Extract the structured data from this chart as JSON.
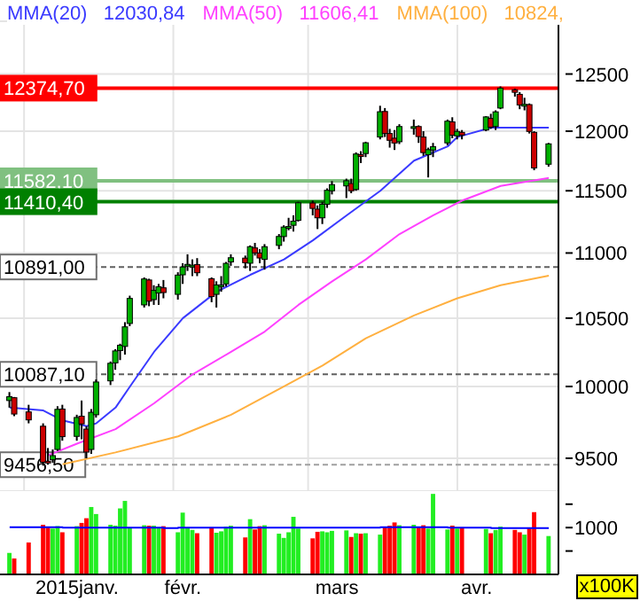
{
  "chart_data": [
    {
      "type": "candlestick",
      "legend": "top left",
      "grid": true,
      "tick_labels": "y",
      "x": [
        "2014-12-29",
        "2014-12-30",
        "2015-01-02",
        "2015-01-05",
        "2015-01-06",
        "2015-01-07",
        "2015-01-08",
        "2015-01-09",
        "2015-01-12",
        "2015-01-13",
        "2015-01-14",
        "2015-01-15",
        "2015-01-16",
        "2015-01-19",
        "2015-01-20",
        "2015-01-21",
        "2015-01-22",
        "2015-01-23",
        "2015-01-26",
        "2015-01-27",
        "2015-01-28",
        "2015-01-29",
        "2015-01-30",
        "2015-02-02",
        "2015-02-03",
        "2015-02-04",
        "2015-02-05",
        "2015-02-06",
        "2015-02-09",
        "2015-02-10",
        "2015-02-11",
        "2015-02-12",
        "2015-02-13",
        "2015-02-16",
        "2015-02-17",
        "2015-02-18",
        "2015-02-19",
        "2015-02-20",
        "2015-02-23",
        "2015-02-24",
        "2015-02-25",
        "2015-02-26",
        "2015-02-27",
        "2015-03-02",
        "2015-03-03",
        "2015-03-04",
        "2015-03-05",
        "2015-03-06",
        "2015-03-09",
        "2015-03-10",
        "2015-03-11",
        "2015-03-12",
        "2015-03-13",
        "2015-03-16",
        "2015-03-17",
        "2015-03-18",
        "2015-03-19",
        "2015-03-20",
        "2015-03-23",
        "2015-03-24",
        "2015-03-25",
        "2015-03-26",
        "2015-03-27",
        "2015-03-30",
        "2015-03-31",
        "2015-04-01",
        "2015-04-02",
        "2015-04-07",
        "2015-04-08",
        "2015-04-09",
        "2015-04-10",
        "2015-04-13",
        "2015-04-14",
        "2015-04-15",
        "2015-04-16",
        "2015-04-17",
        "2015-04-20"
      ],
      "ohlc": [
        [
          9900,
          9960,
          9850,
          9927
        ],
        [
          9920,
          9925,
          9790,
          9805
        ],
        [
          9820,
          9870,
          9740,
          9764
        ],
        [
          9720,
          9740,
          9450,
          9473
        ],
        [
          9480,
          9570,
          9456.5,
          9469
        ],
        [
          9490,
          9560,
          9470,
          9518
        ],
        [
          9560,
          9860,
          9550,
          9838
        ],
        [
          9840,
          9870,
          9620,
          9648
        ],
        [
          9650,
          9800,
          9620,
          9781
        ],
        [
          9790,
          9900,
          9630,
          9736
        ],
        [
          9700,
          9720,
          9500,
          9542
        ],
        [
          9560,
          9840,
          9530,
          9817
        ],
        [
          9800,
          10050,
          9780,
          10032
        ],
        [
          10040,
          10180,
          10010,
          10167
        ],
        [
          10170,
          10270,
          10120,
          10257
        ],
        [
          10260,
          10310,
          10190,
          10299
        ],
        [
          10290,
          10470,
          10230,
          10435
        ],
        [
          10460,
          10670,
          10440,
          10649
        ],
        [
          10600,
          10810,
          10580,
          10798
        ],
        [
          10790,
          10800,
          10590,
          10628
        ],
        [
          10640,
          10750,
          10600,
          10710
        ],
        [
          10690,
          10760,
          10600,
          10738
        ],
        [
          10730,
          10790,
          10650,
          10694
        ],
        [
          10680,
          10850,
          10640,
          10828
        ],
        [
          10830,
          10920,
          10760,
          10891
        ],
        [
          10900,
          10990,
          10860,
          10911
        ],
        [
          10900,
          10950,
          10820,
          10905
        ],
        [
          10910,
          10960,
          10820,
          10846
        ],
        [
          10800,
          10810,
          10620,
          10663
        ],
        [
          10680,
          10780,
          10580,
          10752
        ],
        [
          10750,
          10820,
          10700,
          10752
        ],
        [
          10760,
          10930,
          10740,
          10919
        ],
        [
          10930,
          10990,
          10900,
          10963
        ],
        [
          10960,
          10980,
          10880,
          10924
        ],
        [
          10920,
          11060,
          10860,
          11050
        ],
        [
          11040,
          11080,
          10980,
          11001
        ],
        [
          11000,
          11030,
          10920,
          10961
        ],
        [
          10950,
          11070,
          10870,
          11050
        ],
        [
          11060,
          11150,
          11030,
          11131
        ],
        [
          11130,
          11220,
          11090,
          11206
        ],
        [
          11200,
          11280,
          11180,
          11210
        ],
        [
          11220,
          11300,
          11170,
          11253
        ],
        [
          11260,
          11410,
          11250,
          11402
        ],
        [
          11400,
          11420,
          11300,
          11356
        ],
        [
          11350,
          11380,
          11190,
          11280
        ],
        [
          11280,
          11410,
          11230,
          11390
        ],
        [
          11390,
          11520,
          11360,
          11504
        ],
        [
          11500,
          11580,
          11470,
          11551
        ],
        [
          11540,
          11600,
          11440,
          11583
        ],
        [
          11560,
          11600,
          11480,
          11500
        ],
        [
          11510,
          11820,
          11500,
          11806
        ],
        [
          11800,
          11830,
          11730,
          11799
        ],
        [
          11810,
          11910,
          11780,
          11901
        ],
        [
          11950,
          12220,
          11930,
          12168
        ],
        [
          12170,
          12200,
          11950,
          11980
        ],
        [
          11980,
          12020,
          11860,
          11922
        ],
        [
          11940,
          12010,
          11840,
          11899
        ],
        [
          11910,
          12060,
          11890,
          12040
        ],
        [
          12030,
          12100,
          11970,
          12039
        ],
        [
          12040,
          12050,
          11900,
          11954
        ],
        [
          11950,
          12000,
          11790,
          11818
        ],
        [
          11800,
          11860,
          11610,
          11843
        ],
        [
          11840,
          11900,
          11780,
          11868
        ],
        [
          11900,
          12100,
          11880,
          12086
        ],
        [
          12080,
          12120,
          11940,
          11966
        ],
        [
          11960,
          12020,
          11930,
          11998
        ],
        [
          11990,
          12010,
          11930,
          11967
        ],
        [
          12010,
          12130,
          12000,
          12123
        ],
        [
          12110,
          12150,
          12020,
          12035
        ],
        [
          12040,
          12180,
          12010,
          12167
        ],
        [
          12200,
          12390,
          12190,
          12375
        ],
        [
          12360,
          12370,
          12300,
          12338
        ],
        [
          12320,
          12340,
          12190,
          12227
        ],
        [
          12230,
          12290,
          12180,
          12232
        ],
        [
          12230,
          12240,
          11980,
          11998
        ],
        [
          11990,
          12000,
          11670,
          11689
        ],
        [
          11720,
          11900,
          11700,
          11892
        ]
      ],
      "colors": [
        "#00b000",
        "#cc0000",
        "#cc0000",
        "#cc0000",
        "#cc0000",
        "#00b000",
        "#00b000",
        "#cc0000",
        "#00b000",
        "#cc0000",
        "#cc0000",
        "#00b000",
        "#00b000",
        "#00b000",
        "#00b000",
        "#00b000",
        "#00b000",
        "#00b000",
        "#00b000",
        "#cc0000",
        "#00b000",
        "#00b000",
        "#cc0000",
        "#00b000",
        "#00b000",
        "#00b000",
        "#00b000",
        "#cc0000",
        "#cc0000",
        "#00b000",
        "#00b000",
        "#00b000",
        "#00b000",
        "#cc0000",
        "#00b000",
        "#cc0000",
        "#cc0000",
        "#00b000",
        "#00b000",
        "#00b000",
        "#00b000",
        "#00b000",
        "#00b000",
        "#cc0000",
        "#cc0000",
        "#00b000",
        "#00b000",
        "#00b000",
        "#00b000",
        "#cc0000",
        "#00b000",
        "#cc0000",
        "#00b000",
        "#00b000",
        "#cc0000",
        "#cc0000",
        "#cc0000",
        "#00b000",
        "#00b000",
        "#cc0000",
        "#cc0000",
        "#00b000",
        "#00b000",
        "#00b000",
        "#cc0000",
        "#00b000",
        "#cc0000",
        "#00b000",
        "#cc0000",
        "#00b000",
        "#00b000",
        "#cc0000",
        "#cc0000",
        "#00b000",
        "#cc0000",
        "#cc0000",
        "#00b000"
      ],
      "series": [
        {
          "type": "line",
          "name": "MMA(20)",
          "color": "#3a3aff",
          "x": [
            "2014-12-29",
            "2015-01-05",
            "2015-01-09",
            "2015-01-14",
            "2015-01-16",
            "2015-01-20",
            "2015-01-23",
            "2015-01-28",
            "2015-02-03",
            "2015-02-10",
            "2015-02-17",
            "2015-02-24",
            "2015-03-02",
            "2015-03-09",
            "2015-03-16",
            "2015-03-23",
            "2015-03-30",
            "2015-04-01",
            "2015-04-08",
            "2015-04-20"
          ],
          "values": [
            9850,
            9830,
            9760,
            9720,
            9740,
            9850,
            10000,
            10250,
            10500,
            10700,
            10830,
            10950,
            11100,
            11300,
            11500,
            11750,
            11870,
            11950,
            12030.84,
            12030.84
          ]
        },
        {
          "type": "line",
          "name": "MMA(50)",
          "color": "#ff40ff",
          "x": [
            "2015-01-06",
            "2015-01-12",
            "2015-01-20",
            "2015-01-28",
            "2015-02-05",
            "2015-02-13",
            "2015-02-20",
            "2015-02-27",
            "2015-03-06",
            "2015-03-13",
            "2015-03-20",
            "2015-03-27",
            "2015-04-02",
            "2015-04-10",
            "2015-04-20"
          ],
          "values": [
            9520,
            9600,
            9700,
            9880,
            10087,
            10250,
            10400,
            10600,
            10780,
            10950,
            11150,
            11300,
            11420,
            11540,
            11606.41
          ]
        },
        {
          "type": "line",
          "name": "MMA(100)",
          "color": "#ffb040",
          "x": [
            "2015-01-09",
            "2015-01-20",
            "2015-02-02",
            "2015-02-13",
            "2015-02-24",
            "2015-03-04",
            "2015-03-13",
            "2015-03-23",
            "2015-04-01",
            "2015-04-10",
            "2015-04-20"
          ],
          "values": [
            9460,
            9540,
            9650,
            9800,
            10000,
            10150,
            10350,
            10520,
            10650,
            10750,
            10824
          ]
        }
      ],
      "annotations": [
        "12030,84",
        "11606,41",
        "10824,"
      ],
      "ref_lines": [
        {
          "axis": "y",
          "value": 12374.7,
          "label": "12374,70",
          "color": "#ff0000",
          "line_style": "solid"
        },
        {
          "axis": "y",
          "value": 11582.1,
          "label": "11582,10",
          "color": "#80c080",
          "line_style": "solid"
        },
        {
          "axis": "y",
          "value": 11410.4,
          "label": "11410,40",
          "color": "#008000",
          "line_style": "solid"
        },
        {
          "axis": "y",
          "value": 10891,
          "label": "10891,00",
          "color": "#606060",
          "line_style": "dashed"
        },
        {
          "axis": "y",
          "value": 10087.1,
          "label": "10087,10",
          "color": "#606060",
          "line_style": "dashed"
        },
        {
          "axis": "y",
          "value": 9456.5,
          "label": "9456,50",
          "color": "#a0a0a0",
          "line_style": "dashed"
        }
      ],
      "log": "y",
      "ylim": [
        9280,
        12980
      ],
      "yticks": [
        9500,
        10000,
        10500,
        11000,
        11500,
        12000,
        12500
      ],
      "xlim": [
        "2014-12-27",
        "2015-04-22"
      ],
      "xticks": [
        {
          "value": "2015-01-01",
          "label": null
        },
        {
          "value": "2015-02-01",
          "label": null
        },
        {
          "value": "2015-03-01",
          "label": null
        },
        {
          "value": "2015-04-01",
          "label": null
        }
      ]
    },
    {
      "type": "bar",
      "ylabel": "x100K",
      "x": [
        "2014-12-29",
        "2014-12-30",
        "2015-01-02",
        "2015-01-05",
        "2015-01-06",
        "2015-01-07",
        "2015-01-08",
        "2015-01-09",
        "2015-01-12",
        "2015-01-13",
        "2015-01-14",
        "2015-01-15",
        "2015-01-16",
        "2015-01-19",
        "2015-01-20",
        "2015-01-21",
        "2015-01-22",
        "2015-01-23",
        "2015-01-26",
        "2015-01-27",
        "2015-01-28",
        "2015-01-29",
        "2015-01-30",
        "2015-02-02",
        "2015-02-03",
        "2015-02-04",
        "2015-02-05",
        "2015-02-06",
        "2015-02-09",
        "2015-02-10",
        "2015-02-11",
        "2015-02-12",
        "2015-02-13",
        "2015-02-16",
        "2015-02-17",
        "2015-02-18",
        "2015-02-19",
        "2015-02-20",
        "2015-02-23",
        "2015-02-24",
        "2015-02-25",
        "2015-02-26",
        "2015-02-27",
        "2015-03-02",
        "2015-03-03",
        "2015-03-04",
        "2015-03-05",
        "2015-03-06",
        "2015-03-09",
        "2015-03-10",
        "2015-03-11",
        "2015-03-12",
        "2015-03-13",
        "2015-03-16",
        "2015-03-17",
        "2015-03-18",
        "2015-03-19",
        "2015-03-20",
        "2015-03-23",
        "2015-03-24",
        "2015-03-25",
        "2015-03-26",
        "2015-03-27",
        "2015-03-30",
        "2015-03-31",
        "2015-04-01",
        "2015-04-02",
        "2015-04-07",
        "2015-04-08",
        "2015-04-09",
        "2015-04-10",
        "2015-04-13",
        "2015-04-14",
        "2015-04-15",
        "2015-04-16",
        "2015-04-17",
        "2015-04-20"
      ],
      "values": [
        460,
        340,
        680,
        1060,
        1000,
        980,
        1030,
        900,
        1030,
        1100,
        1200,
        1440,
        1290,
        1060,
        1040,
        1410,
        1570,
        1000,
        1050,
        1040,
        1040,
        1000,
        1030,
        900,
        1320,
        1000,
        950,
        880,
        1000,
        890,
        920,
        1020,
        1040,
        790,
        1180,
        960,
        1030,
        1050,
        870,
        780,
        900,
        1230,
        980,
        770,
        910,
        920,
        900,
        930,
        940,
        800,
        880,
        870,
        880,
        850,
        1020,
        1040,
        1110,
        1050,
        1060,
        1020,
        1050,
        980,
        1720,
        960,
        1040,
        980,
        1000,
        970,
        880,
        950,
        1020,
        950,
        900,
        850,
        1000,
        1330,
        820
      ],
      "colors": [
        "#22ee22",
        "#ff0000",
        "#ff0000",
        "#ff0000",
        "#ff0000",
        "#22ee22",
        "#22ee22",
        "#ff0000",
        "#22ee22",
        "#ff0000",
        "#ff0000",
        "#22ee22",
        "#22ee22",
        "#22ee22",
        "#22ee22",
        "#22ee22",
        "#22ee22",
        "#22ee22",
        "#22ee22",
        "#ff0000",
        "#22ee22",
        "#22ee22",
        "#ff0000",
        "#22ee22",
        "#22ee22",
        "#22ee22",
        "#22ee22",
        "#ff0000",
        "#ff0000",
        "#22ee22",
        "#22ee22",
        "#22ee22",
        "#22ee22",
        "#ff0000",
        "#22ee22",
        "#ff0000",
        "#ff0000",
        "#22ee22",
        "#22ee22",
        "#22ee22",
        "#22ee22",
        "#22ee22",
        "#22ee22",
        "#ff0000",
        "#ff0000",
        "#22ee22",
        "#22ee22",
        "#22ee22",
        "#22ee22",
        "#ff0000",
        "#22ee22",
        "#ff0000",
        "#22ee22",
        "#22ee22",
        "#ff0000",
        "#ff0000",
        "#ff0000",
        "#22ee22",
        "#22ee22",
        "#ff0000",
        "#ff0000",
        "#22ee22",
        "#22ee22",
        "#22ee22",
        "#ff0000",
        "#22ee22",
        "#ff0000",
        "#22ee22",
        "#ff0000",
        "#22ee22",
        "#22ee22",
        "#ff0000",
        "#ff0000",
        "#22ee22",
        "#ff0000",
        "#ff0000",
        "#22ee22"
      ],
      "series": [
        {
          "type": "step",
          "color": "#0000ff",
          "x": [
            "2014-12-29",
            "2015-01-09",
            "2015-01-30",
            "2015-02-02",
            "2015-02-20",
            "2015-03-16",
            "2015-03-30",
            "2015-04-08",
            "2015-04-20"
          ],
          "values": [
            1010,
            1000,
            990,
            1000,
            1000,
            1010,
            1000,
            990,
            990
          ]
        }
      ],
      "ylim": [
        0,
        1780
      ],
      "yticks": [
        {
          "value": 500,
          "label": null
        },
        1000,
        {
          "value": 1500,
          "label": null
        }
      ],
      "xlim": [
        "2014-12-27",
        "2015-04-22"
      ],
      "xticks": [
        {
          "value": "2015-01-12",
          "label": "2015janv."
        },
        {
          "value": "2015-02-03",
          "label": "févr."
        },
        {
          "value": "2015-03-07",
          "label": "mars"
        },
        {
          "value": "2015-04-05",
          "label": "avr."
        }
      ]
    }
  ]
}
